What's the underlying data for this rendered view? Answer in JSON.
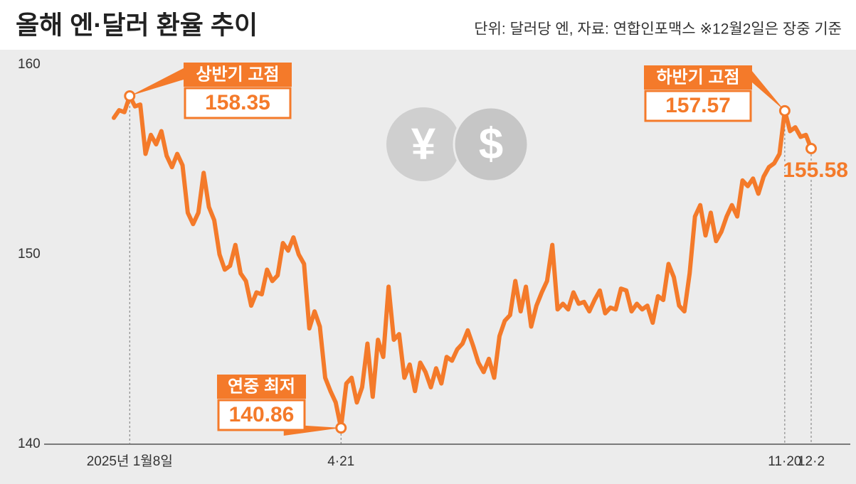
{
  "chart_data": {
    "type": "line",
    "title": "올해 엔·달러 환율 추이",
    "subtitle": "단위: 달러당 엔, 자료: 연합인포맥스 ※12월2일은 장중 기준",
    "categories": [
      null,
      null,
      null,
      "2025년 1월8일",
      null,
      null,
      null,
      null,
      null,
      null,
      null,
      null,
      null,
      null,
      null,
      null,
      null,
      null,
      null,
      null,
      null,
      null,
      null,
      null,
      null,
      null,
      null,
      null,
      null,
      null,
      null,
      null,
      null,
      null,
      null,
      null,
      null,
      null,
      null,
      null,
      null,
      null,
      null,
      "4·21",
      null,
      null,
      null,
      null,
      null,
      null,
      null,
      null,
      null,
      null,
      null,
      null,
      null,
      null,
      null,
      null,
      null,
      null,
      null,
      null,
      null,
      null,
      null,
      null,
      null,
      null,
      null,
      null,
      null,
      null,
      null,
      null,
      null,
      null,
      null,
      null,
      null,
      null,
      null,
      null,
      null,
      null,
      null,
      null,
      null,
      null,
      null,
      null,
      null,
      null,
      null,
      null,
      null,
      null,
      null,
      null,
      null,
      null,
      null,
      null,
      null,
      null,
      null,
      null,
      null,
      null,
      null,
      null,
      null,
      null,
      null,
      null,
      null,
      null,
      null,
      null,
      null,
      null,
      null,
      null,
      null,
      null,
      null,
      "11·20",
      null,
      null,
      null,
      null,
      "12·2"
    ],
    "values": [
      157.2,
      157.6,
      157.5,
      158.35,
      157.8,
      157.9,
      155.3,
      156.3,
      155.8,
      156.5,
      155.2,
      154.6,
      155.3,
      154.7,
      152.2,
      151.6,
      152.2,
      154.3,
      152.5,
      151.8,
      150.0,
      149.2,
      149.4,
      150.5,
      149.0,
      148.6,
      147.3,
      148.0,
      147.9,
      149.2,
      148.6,
      148.9,
      150.6,
      150.2,
      150.9,
      150.0,
      149.5,
      146.1,
      147.0,
      146.2,
      143.5,
      142.8,
      142.2,
      140.86,
      143.2,
      143.5,
      142.2,
      143.0,
      145.3,
      142.5,
      145.5,
      144.6,
      148.3,
      145.5,
      145.8,
      143.5,
      144.2,
      142.8,
      144.3,
      143.8,
      143.0,
      144.0,
      143.2,
      144.6,
      144.4,
      145.0,
      145.3,
      146.0,
      145.2,
      144.3,
      143.8,
      144.5,
      143.5,
      145.7,
      146.5,
      146.8,
      148.6,
      147.0,
      148.3,
      146.2,
      147.3,
      148.0,
      148.6,
      150.5,
      147.1,
      147.4,
      147.1,
      148.0,
      147.4,
      147.5,
      147.0,
      147.6,
      148.1,
      146.9,
      147.2,
      147.1,
      148.2,
      148.1,
      147.0,
      147.4,
      147.1,
      147.3,
      146.4,
      147.8,
      147.6,
      149.5,
      148.8,
      147.3,
      147.0,
      149.0,
      152.0,
      152.6,
      151.0,
      152.2,
      150.7,
      151.2,
      152.0,
      152.6,
      152.0,
      153.9,
      153.6,
      154.0,
      153.2,
      154.1,
      154.6,
      154.8,
      155.3,
      157.57,
      156.5,
      156.7,
      156.2,
      156.3,
      155.58
    ],
    "color": "#f47a2a",
    "ylim": [
      140,
      160
    ],
    "yticks": [
      140,
      150,
      160
    ],
    "grid": false,
    "annotations": [
      "상반기 고점",
      "연중 최저",
      "하반기 고점"
    ],
    "icons": [
      "¥",
      "$"
    ]
  }
}
